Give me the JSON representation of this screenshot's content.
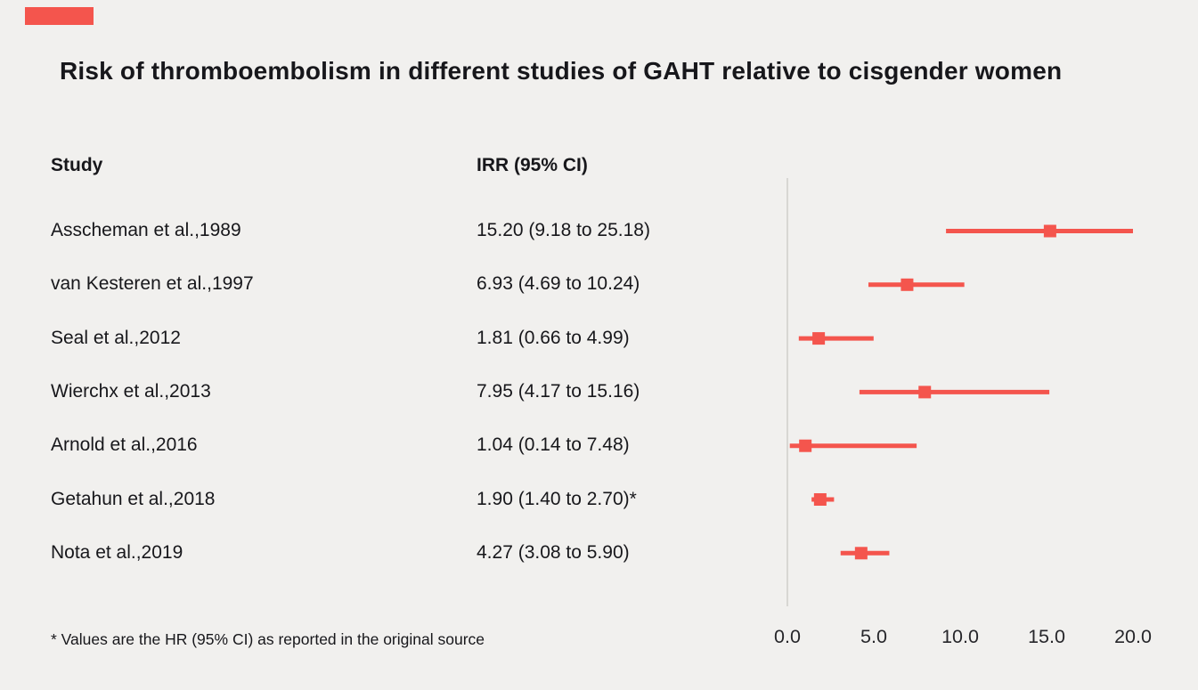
{
  "title": "Risk of thromboembolism in different studies of GAHT relative to cisgender women",
  "columns": {
    "study": "Study",
    "irr": "IRR (95% CI)"
  },
  "footnote": "* Values are the HR (95% CI) as reported in the original source",
  "colors": {
    "accent": "#f4554d",
    "text": "#17171b",
    "axis_line": "#d8d7d3",
    "background": "#f1f0ee",
    "tick_text": "#26262a"
  },
  "chart_data": {
    "type": "scatter",
    "subtype": "forest-plot",
    "title": "Risk of thromboembolism in different studies of GAHT relative to cisgender women",
    "xlabel": "",
    "ylabel": "",
    "xlim": [
      0,
      20
    ],
    "grid": false,
    "legend": "none",
    "marker": "square",
    "x_axis": {
      "ticks": [
        0.0,
        5.0,
        10.0,
        15.0,
        20.0
      ],
      "tick_labels": [
        "0.0",
        "5.0",
        "10.0",
        "15.0",
        "20.0"
      ]
    },
    "studies": [
      {
        "label": "Asscheman et al.,1989",
        "irr_text": "15.20 (9.18 to 25.18)",
        "estimate": 15.2,
        "ci_low": 9.18,
        "ci_high": 25.18
      },
      {
        "label": "van Kesteren et al.,1997",
        "irr_text": "6.93 (4.69 to 10.24)",
        "estimate": 6.93,
        "ci_low": 4.69,
        "ci_high": 10.24
      },
      {
        "label": "Seal et al.,2012",
        "irr_text": "1.81 (0.66 to 4.99)",
        "estimate": 1.81,
        "ci_low": 0.66,
        "ci_high": 4.99
      },
      {
        "label": "Wierchx et al.,2013",
        "irr_text": "7.95 (4.17 to 15.16)",
        "estimate": 7.95,
        "ci_low": 4.17,
        "ci_high": 15.16
      },
      {
        "label": "Arnold et al.,2016",
        "irr_text": "1.04 (0.14 to 7.48)",
        "estimate": 1.04,
        "ci_low": 0.14,
        "ci_high": 7.48
      },
      {
        "label": "Getahun et al.,2018",
        "irr_text": "1.90 (1.40 to 2.70)*",
        "estimate": 1.9,
        "ci_low": 1.4,
        "ci_high": 2.7
      },
      {
        "label": "Nota et al.,2019",
        "irr_text": "4.27 (3.08 to 5.90)",
        "estimate": 4.27,
        "ci_low": 3.08,
        "ci_high": 5.9
      }
    ],
    "clip_ci_at_xmax": true
  }
}
